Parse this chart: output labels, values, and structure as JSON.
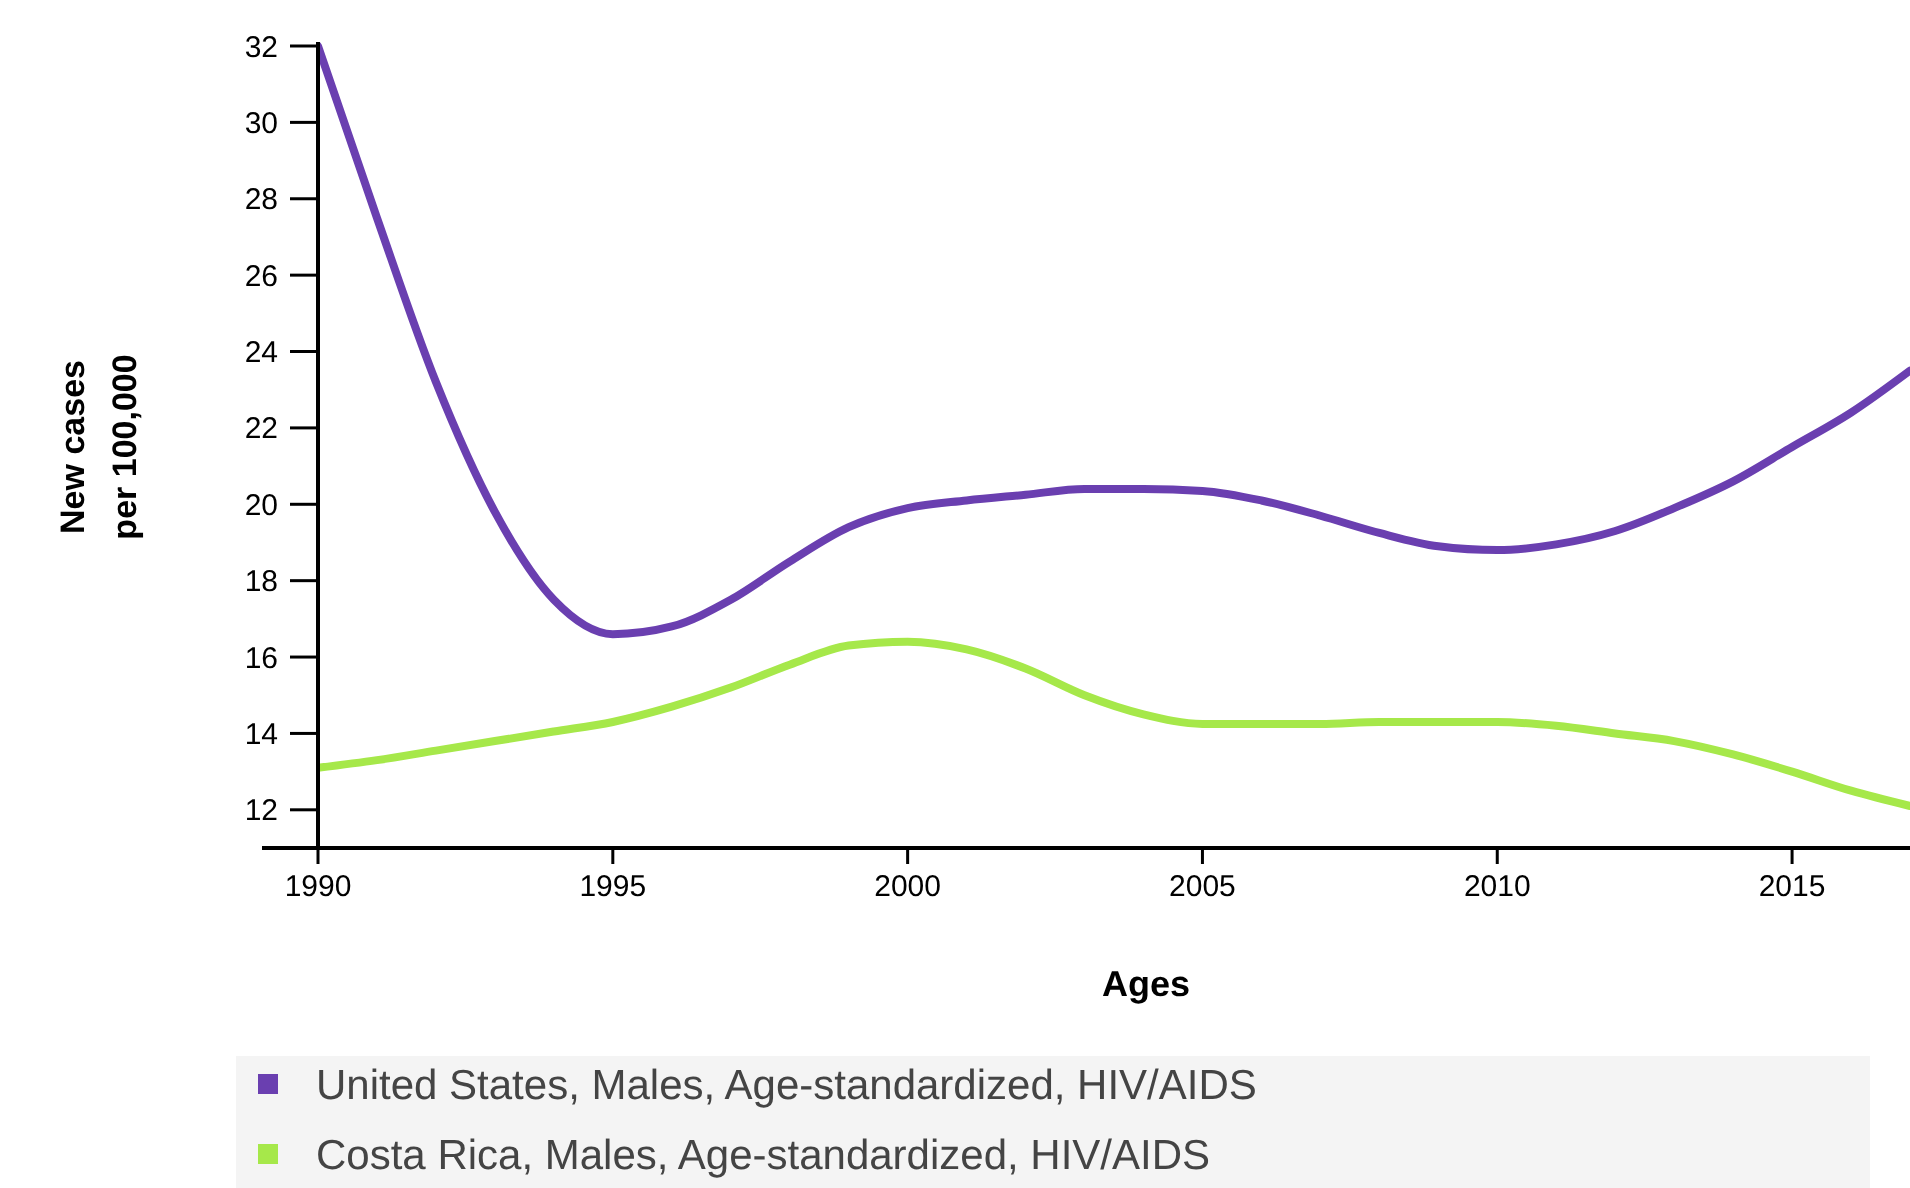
{
  "chart_data": {
    "type": "line",
    "xlabel": "Ages",
    "ylabel": "New cases per 100,000",
    "x": [
      1990,
      1991,
      1992,
      1993,
      1994,
      1995,
      1996,
      1997,
      1998,
      1999,
      2000,
      2001,
      2002,
      2003,
      2004,
      2005,
      2006,
      2007,
      2008,
      2009,
      2010,
      2011,
      2012,
      2013,
      2014,
      2015,
      2016,
      2017
    ],
    "series": [
      {
        "name": "United States, Males, Age-standardized, HIV/AIDS",
        "color": "#6a3fb0",
        "values": [
          32,
          27.5,
          23.2,
          19.8,
          17.5,
          16.6,
          16.8,
          17.5,
          18.5,
          19.4,
          19.9,
          20.1,
          20.25,
          20.4,
          20.4,
          20.35,
          20.1,
          19.7,
          19.25,
          18.9,
          18.8,
          18.95,
          19.3,
          19.9,
          20.6,
          21.5,
          22.4,
          23.5
        ]
      },
      {
        "name": "Costa Rica, Males, Age-standardized, HIV/AIDS",
        "color": "#a6e84a",
        "values": [
          13.1,
          13.3,
          13.55,
          13.8,
          14.05,
          14.3,
          14.7,
          15.2,
          15.8,
          16.3,
          16.4,
          16.2,
          15.7,
          15.0,
          14.5,
          14.25,
          14.25,
          14.25,
          14.3,
          14.3,
          14.3,
          14.2,
          14.0,
          13.8,
          13.45,
          13.0,
          12.5,
          12.1
        ]
      }
    ],
    "xlim": [
      1990,
      2017
    ],
    "xticks": [
      1990,
      1995,
      2000,
      2005,
      2010,
      2015
    ],
    "ylim": [
      11,
      32
    ],
    "yticks": [
      12,
      14,
      16,
      18,
      20,
      22,
      24,
      26,
      28,
      30,
      32
    ],
    "grid": false,
    "legend": "bottom",
    "marker": "none",
    "line_style": "solid"
  }
}
